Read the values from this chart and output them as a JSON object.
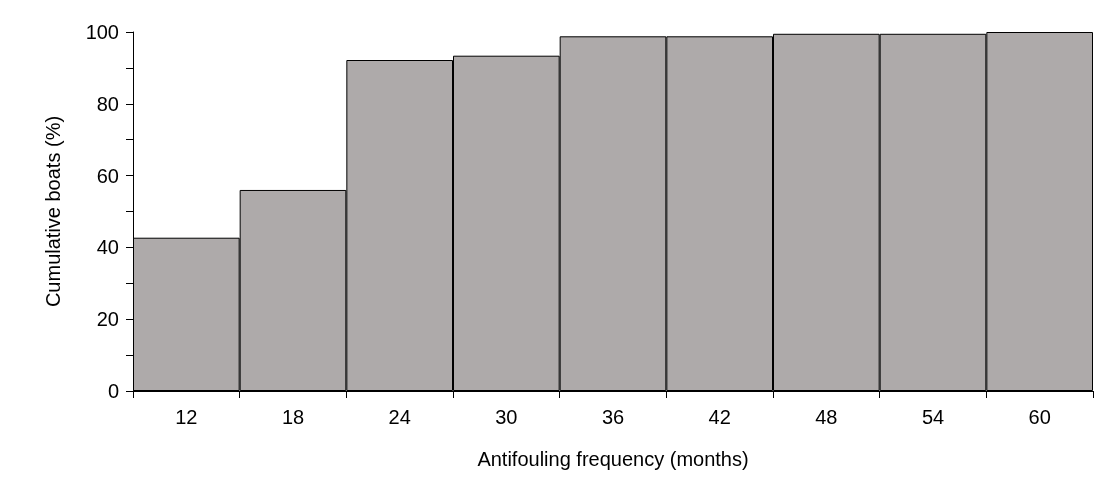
{
  "chart_data": {
    "type": "bar",
    "xlabel": "Antifouling frequency (months)",
    "ylabel": "Cumulative boats (%)",
    "categories": [
      "12",
      "18",
      "24",
      "30",
      "36",
      "42",
      "48",
      "54",
      "60"
    ],
    "values": [
      42.7,
      56,
      92.2,
      93.4,
      98.8,
      98.8,
      99.5,
      99.5,
      100
    ],
    "color": "#aeaaaa",
    "ylim": [
      0,
      100
    ],
    "yticks": [
      0,
      {
        "value": 10,
        "label": null
      },
      20,
      {
        "value": 30,
        "label": null
      },
      40,
      {
        "value": 50,
        "label": null
      },
      60,
      {
        "value": 70,
        "label": null
      },
      80,
      {
        "value": 90,
        "label": null
      },
      100
    ],
    "grid": false
  }
}
